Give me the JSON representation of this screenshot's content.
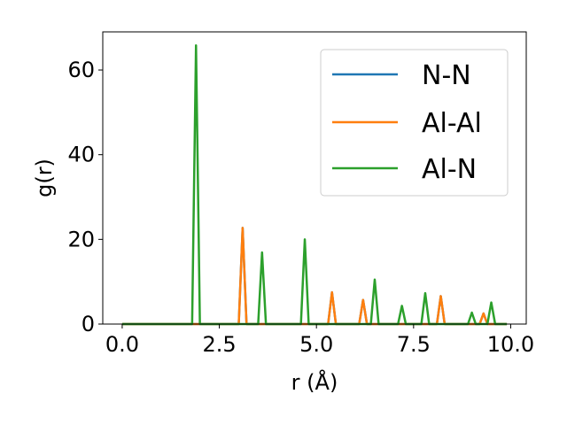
{
  "chart_data": {
    "type": "line",
    "xlabel": "r (Å)",
    "ylabel": "g(r)",
    "xlim": [
      -0.5,
      10.4
    ],
    "ylim": [
      0,
      69
    ],
    "xticks": [
      0.0,
      2.5,
      5.0,
      7.5,
      10.0
    ],
    "xtick_labels": [
      "0.0",
      "2.5",
      "5.0",
      "7.5",
      "10.0"
    ],
    "yticks": [
      0,
      20,
      40,
      60
    ],
    "ytick_labels": [
      "0",
      "20",
      "40",
      "60"
    ],
    "grid": false,
    "legend_position": "top-right",
    "series": [
      {
        "name": "N-N",
        "color": "#1f77b4",
        "x": [
          0.0,
          3.0,
          3.1,
          3.2,
          5.3,
          5.4,
          5.5,
          6.1,
          6.2,
          6.3,
          8.1,
          8.2,
          8.3,
          9.2,
          9.3,
          9.4,
          9.9
        ],
        "y": [
          0,
          0,
          22.7,
          0,
          0,
          7.5,
          0,
          0,
          5.7,
          0,
          0,
          6.6,
          0,
          0,
          2.5,
          0,
          0
        ]
      },
      {
        "name": "Al-Al",
        "color": "#ff7f0e",
        "x": [
          0.0,
          3.0,
          3.1,
          3.2,
          5.3,
          5.4,
          5.5,
          6.1,
          6.2,
          6.3,
          8.1,
          8.2,
          8.3,
          9.2,
          9.3,
          9.4,
          9.9
        ],
        "y": [
          0,
          0,
          22.7,
          0,
          0,
          7.5,
          0,
          0,
          5.7,
          0,
          0,
          6.6,
          0,
          0,
          2.5,
          0,
          0
        ]
      },
      {
        "name": "Al-N",
        "color": "#2ca02c",
        "x": [
          0.0,
          1.8,
          1.9,
          2.0,
          3.5,
          3.6,
          3.7,
          4.6,
          4.7,
          4.8,
          6.4,
          6.5,
          6.6,
          7.1,
          7.2,
          7.3,
          7.7,
          7.8,
          7.9,
          8.9,
          9.0,
          9.1,
          9.4,
          9.5,
          9.6,
          9.9
        ],
        "y": [
          0,
          0,
          65.8,
          0,
          0,
          16.9,
          0,
          0,
          20.0,
          0,
          0,
          10.5,
          0,
          0,
          4.3,
          0,
          0,
          7.3,
          0,
          0,
          2.7,
          0,
          0,
          5.1,
          0,
          0
        ]
      }
    ]
  }
}
